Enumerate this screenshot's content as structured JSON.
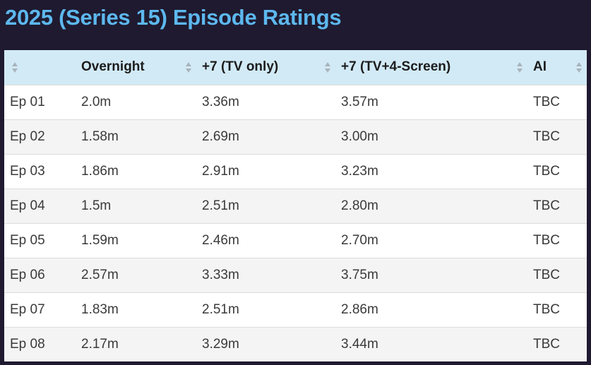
{
  "page": {
    "title": "2025 (Series 15) Episode Ratings"
  },
  "table": {
    "headers": [
      "",
      "Overnight",
      "+7 (TV only)",
      "+7 (TV+4-Screen)",
      "AI"
    ],
    "rows": [
      [
        "Ep 01",
        "2.0m",
        "3.36m",
        "3.57m",
        "TBC"
      ],
      [
        "Ep 02",
        "1.58m",
        "2.69m",
        "3.00m",
        "TBC"
      ],
      [
        "Ep 03",
        "1.86m",
        "2.91m",
        "3.23m",
        "TBC"
      ],
      [
        "Ep 04",
        "1.5m",
        "2.51m",
        "2.80m",
        "TBC"
      ],
      [
        "Ep 05",
        "1.59m",
        "2.46m",
        "2.70m",
        "TBC"
      ],
      [
        "Ep 06",
        "2.57m",
        "3.33m",
        "3.75m",
        "TBC"
      ],
      [
        "Ep 07",
        "1.83m",
        "2.51m",
        "2.86m",
        "TBC"
      ],
      [
        "Ep 08",
        "2.17m",
        "3.29m",
        "3.44m",
        "TBC"
      ]
    ]
  },
  "icons": {
    "sort": "sort-icon"
  },
  "colors": {
    "background": "#1f1a30",
    "title": "#5db8ee",
    "header_bg": "#d2eaf6",
    "row_alt_bg": "#f4f4f4"
  }
}
